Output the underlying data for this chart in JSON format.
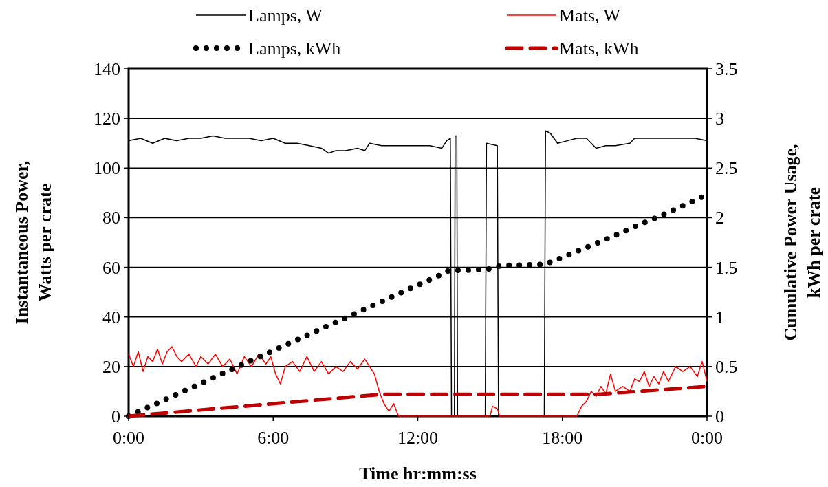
{
  "chart_data": {
    "type": "line",
    "xlabel": "Time hr:mm:ss",
    "ylabel": "Instantaneous Power,\nWatts per crate",
    "y2label": "Cumulative Power Usage,\nkWh per crate",
    "xlim": [
      0,
      24
    ],
    "xticks": [
      {
        "value": 0,
        "label": "0:00"
      },
      {
        "value": 6,
        "label": "6:00"
      },
      {
        "value": 12,
        "label": "12:00"
      },
      {
        "value": 18,
        "label": "18:00"
      },
      {
        "value": 24,
        "label": "0:00"
      }
    ],
    "ylim": [
      0,
      140
    ],
    "yticks": [
      0,
      20,
      40,
      60,
      80,
      100,
      120,
      140
    ],
    "y2lim": [
      0,
      3.5
    ],
    "y2ticks": [
      0,
      0.5,
      1,
      1.5,
      2,
      2.5,
      3,
      3.5
    ],
    "grid": "y",
    "legend": "top",
    "marker": "none",
    "series": [
      {
        "name": "Lamps, W",
        "color": "#000000",
        "line_style": "solid",
        "x": [
          0,
          0.5,
          1,
          1.5,
          2,
          2.5,
          3,
          3.5,
          4,
          4.5,
          5,
          5.5,
          6,
          6.5,
          7,
          7.5,
          8,
          8.3,
          8.6,
          9,
          9.5,
          9.8,
          10,
          10.5,
          11,
          11.5,
          12,
          12.5,
          13,
          13.2,
          13.35,
          13.4,
          13.52,
          13.55,
          13.62,
          13.65,
          14.8,
          14.85,
          15.3,
          15.35,
          17.25,
          17.3,
          17.5,
          17.8,
          18.2,
          18.6,
          19,
          19.4,
          19.8,
          20.2,
          20.8,
          21,
          21.5,
          22,
          22.5,
          23,
          23.5,
          24
        ],
        "values": [
          111,
          112,
          110,
          112,
          111,
          112,
          112,
          113,
          112,
          112,
          112,
          111,
          112,
          110,
          110,
          109,
          108,
          106,
          107,
          107,
          108,
          107,
          110,
          109,
          109,
          109,
          109,
          109,
          108,
          111,
          112,
          0,
          0,
          113,
          113,
          0,
          0,
          110,
          109,
          0,
          0,
          115,
          114,
          110,
          111,
          112,
          112,
          108,
          109,
          109,
          110,
          112,
          112,
          112,
          112,
          112,
          112,
          111
        ]
      },
      {
        "name": "Mats, W",
        "color": "#ff0000",
        "line_style": "solid",
        "x": [
          0,
          0.2,
          0.4,
          0.6,
          0.8,
          1,
          1.2,
          1.4,
          1.6,
          1.8,
          2,
          2.2,
          2.5,
          2.8,
          3,
          3.3,
          3.6,
          3.9,
          4.2,
          4.5,
          4.8,
          5.1,
          5.4,
          5.7,
          5.9,
          6.1,
          6.3,
          6.5,
          6.8,
          7.1,
          7.4,
          7.7,
          8,
          8.3,
          8.6,
          8.9,
          9.2,
          9.5,
          9.8,
          10,
          10.2,
          10.4,
          10.6,
          10.8,
          11,
          11.2,
          15,
          15.1,
          15.3,
          15.4,
          18.6,
          18.8,
          19,
          19.2,
          19.4,
          19.6,
          19.8,
          20,
          20.2,
          20.5,
          20.8,
          21,
          21.2,
          21.4,
          21.6,
          21.8,
          22,
          22.2,
          22.4,
          22.7,
          23,
          23.3,
          23.6,
          23.8,
          24
        ],
        "values": [
          25,
          20,
          26,
          18,
          24,
          22,
          27,
          21,
          26,
          28,
          24,
          22,
          25,
          20,
          24,
          21,
          25,
          20,
          23,
          17,
          24,
          20,
          25,
          21,
          24,
          17,
          13,
          20,
          22,
          18,
          24,
          18,
          22,
          17,
          20,
          18,
          22,
          19,
          23,
          20,
          17,
          10,
          5,
          2,
          5,
          0,
          0,
          4,
          3,
          0,
          0,
          4,
          6,
          10,
          8,
          12,
          9,
          17,
          10,
          12,
          10,
          15,
          14,
          18,
          12,
          16,
          13,
          18,
          14,
          20,
          18,
          20,
          16,
          22,
          14
        ]
      },
      {
        "name": "Lamps, kWh",
        "color": "#000000",
        "line_style": "dotted",
        "axis": "y2",
        "x": [
          0,
          1,
          2,
          3,
          4,
          5,
          6,
          7,
          8,
          9,
          10,
          11,
          12,
          13,
          13.3,
          14,
          14.9,
          15.5,
          16,
          17.3,
          18,
          19,
          20,
          21,
          22,
          23,
          24
        ],
        "values": [
          0,
          0.11,
          0.22,
          0.33,
          0.44,
          0.55,
          0.66,
          0.77,
          0.88,
          0.99,
          1.1,
          1.21,
          1.32,
          1.43,
          1.47,
          1.47,
          1.48,
          1.52,
          1.52,
          1.53,
          1.6,
          1.7,
          1.8,
          1.91,
          2.01,
          2.12,
          2.23
        ]
      },
      {
        "name": "Mats, kWh",
        "color": "#c00000",
        "line_style": "dashed",
        "axis": "y2",
        "x": [
          0,
          10.5,
          19.5,
          24
        ],
        "values": [
          0,
          0.22,
          0.22,
          0.3
        ]
      }
    ]
  }
}
